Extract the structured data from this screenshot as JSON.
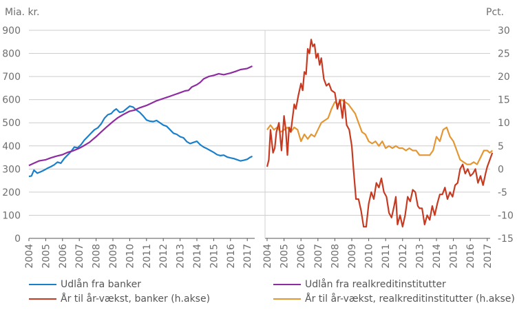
{
  "chart_data": {
    "type": "line",
    "left_panel": {
      "unit_label": "Mia. kr.",
      "ylim": [
        0,
        900
      ],
      "yticks": [
        0,
        100,
        200,
        300,
        400,
        500,
        600,
        700,
        800,
        900
      ],
      "x_ticks": [
        "2004",
        "2005",
        "2006",
        "2007",
        "2008",
        "2009",
        "2010",
        "2011",
        "2012",
        "2013",
        "2014",
        "2015",
        "2016",
        "2017"
      ],
      "xlim": [
        2004,
        2017.5
      ],
      "series": [
        {
          "name": "Udlån fra banker",
          "color": "#1a7fc9",
          "x": [
            2004.0,
            2004.15,
            2004.3,
            2004.5,
            2004.7,
            2004.9,
            2005.1,
            2005.3,
            2005.5,
            2005.7,
            2005.9,
            2006.1,
            2006.3,
            2006.5,
            2006.7,
            2006.9,
            2007.1,
            2007.3,
            2007.5,
            2007.7,
            2007.9,
            2008.1,
            2008.3,
            2008.5,
            2008.7,
            2008.9,
            2009.05,
            2009.2,
            2009.4,
            2009.6,
            2009.8,
            2010.0,
            2010.2,
            2010.4,
            2010.6,
            2010.8,
            2011.0,
            2011.2,
            2011.4,
            2011.6,
            2011.8,
            2012.0,
            2012.2,
            2012.4,
            2012.6,
            2012.8,
            2013.0,
            2013.2,
            2013.4,
            2013.6,
            2013.8,
            2014.0,
            2014.2,
            2014.4,
            2014.6,
            2014.8,
            2015.0,
            2015.2,
            2015.4,
            2015.6,
            2015.8,
            2016.0,
            2016.2,
            2016.4,
            2016.6,
            2016.8,
            2017.0,
            2017.15,
            2017.3
          ],
          "y": [
            268,
            270,
            295,
            282,
            288,
            295,
            303,
            310,
            318,
            330,
            325,
            345,
            360,
            375,
            395,
            392,
            405,
            425,
            440,
            455,
            470,
            478,
            495,
            520,
            535,
            540,
            552,
            560,
            545,
            548,
            560,
            572,
            568,
            555,
            545,
            530,
            512,
            507,
            505,
            510,
            500,
            490,
            485,
            470,
            455,
            450,
            440,
            435,
            418,
            410,
            415,
            420,
            405,
            395,
            388,
            380,
            372,
            362,
            358,
            360,
            352,
            348,
            345,
            340,
            335,
            338,
            342,
            350,
            355
          ]
        },
        {
          "name": "Udlån fra realkreditinstitutter",
          "color": "#8e2ba0",
          "x": [
            2004.0,
            2004.3,
            2004.6,
            2005.0,
            2005.3,
            2005.6,
            2006.0,
            2006.3,
            2006.6,
            2007.0,
            2007.3,
            2007.6,
            2008.0,
            2008.3,
            2008.6,
            2009.0,
            2009.3,
            2009.6,
            2010.0,
            2010.3,
            2010.6,
            2011.0,
            2011.3,
            2011.6,
            2012.0,
            2012.3,
            2012.6,
            2013.0,
            2013.3,
            2013.5,
            2013.7,
            2014.0,
            2014.2,
            2014.4,
            2014.7,
            2015.0,
            2015.3,
            2015.6,
            2016.0,
            2016.3,
            2016.6,
            2017.0,
            2017.3
          ],
          "y": [
            315,
            325,
            335,
            340,
            348,
            355,
            362,
            372,
            378,
            390,
            402,
            415,
            440,
            460,
            480,
            505,
            522,
            535,
            550,
            555,
            565,
            575,
            585,
            595,
            605,
            612,
            620,
            630,
            638,
            640,
            655,
            665,
            675,
            690,
            700,
            705,
            712,
            708,
            715,
            722,
            730,
            735,
            745
          ]
        }
      ]
    },
    "right_panel": {
      "unit_label": "Pct.",
      "ylim": [
        -15,
        30
      ],
      "yticks": [
        -15,
        -10,
        -5,
        0,
        5,
        10,
        15,
        20,
        25,
        30
      ],
      "x_ticks": [
        "2004",
        "2005",
        "2006",
        "2007",
        "2008",
        "2009",
        "2010",
        "2011",
        "2012",
        "2013",
        "2014",
        "2015",
        "2016",
        "2017"
      ],
      "xlim": [
        2004,
        2017.3
      ],
      "series": [
        {
          "name": "År til år-vækst, banker (h.akse)",
          "color": "#c63a21",
          "x": [
            2004.0,
            2004.1,
            2004.2,
            2004.35,
            2004.45,
            2004.55,
            2004.7,
            2004.85,
            2005.0,
            2005.1,
            2005.2,
            2005.3,
            2005.4,
            2005.5,
            2005.6,
            2005.7,
            2005.85,
            2006.0,
            2006.1,
            2006.2,
            2006.3,
            2006.4,
            2006.5,
            2006.6,
            2006.7,
            2006.8,
            2006.9,
            2007.0,
            2007.1,
            2007.2,
            2007.35,
            2007.5,
            2007.65,
            2007.8,
            2008.0,
            2008.15,
            2008.3,
            2008.45,
            2008.55,
            2008.7,
            2008.85,
            2009.0,
            2009.1,
            2009.25,
            2009.4,
            2009.55,
            2009.7,
            2009.85,
            2010.0,
            2010.15,
            2010.3,
            2010.45,
            2010.6,
            2010.75,
            2010.9,
            2011.05,
            2011.2,
            2011.35,
            2011.5,
            2011.6,
            2011.7,
            2011.85,
            2012.0,
            2012.15,
            2012.3,
            2012.45,
            2012.6,
            2012.75,
            2012.9,
            2013.0,
            2013.15,
            2013.3,
            2013.45,
            2013.6,
            2013.75,
            2013.9,
            2014.05,
            2014.2,
            2014.35,
            2014.5,
            2014.65,
            2014.8,
            2014.95,
            2015.1,
            2015.25,
            2015.4,
            2015.55,
            2015.7,
            2015.85,
            2016.0,
            2016.15,
            2016.3,
            2016.45,
            2016.6,
            2016.75,
            2016.9,
            2017.0,
            2017.1,
            2017.2,
            2017.3
          ],
          "y": [
            0.5,
            2.0,
            8.5,
            3.5,
            4.5,
            8.0,
            10.0,
            4.0,
            11.5,
            8.5,
            3.0,
            9.0,
            8.0,
            11.0,
            14.0,
            13.0,
            16.0,
            18.5,
            17.0,
            21.0,
            20.5,
            26.0,
            25.0,
            28.0,
            26.5,
            27.0,
            24.0,
            25.0,
            22.5,
            24.0,
            19.5,
            18.0,
            18.5,
            17.0,
            16.5,
            13.0,
            15.0,
            11.0,
            15.0,
            9.5,
            8.5,
            5.0,
            0.0,
            -6.5,
            -6.5,
            -9.0,
            -12.5,
            -12.5,
            -7.5,
            -5.0,
            -6.5,
            -3.0,
            -4.0,
            -2.0,
            -5.0,
            -6.0,
            -9.5,
            -10.5,
            -8.0,
            -6.0,
            -12.0,
            -10.0,
            -12.5,
            -10.0,
            -6.0,
            -7.0,
            -4.5,
            -5.0,
            -8.0,
            -8.5,
            -8.5,
            -12.0,
            -10.0,
            -11.0,
            -8.0,
            -10.0,
            -7.5,
            -5.5,
            -5.5,
            -4.0,
            -6.5,
            -5.0,
            -6.0,
            -3.5,
            -3.0,
            0.0,
            1.0,
            -1.0,
            0.0,
            -1.5,
            -1.0,
            0.0,
            -3.0,
            -1.5,
            -3.5,
            -1.0,
            0.5,
            1.5,
            2.5,
            3.5
          ]
        },
        {
          "name": "År til år-vækst, realkreditinstitutter (h.akse)",
          "color": "#e39632",
          "x": [
            2004.0,
            2004.2,
            2004.4,
            2004.6,
            2004.8,
            2005.0,
            2005.2,
            2005.4,
            2005.6,
            2005.8,
            2006.0,
            2006.2,
            2006.4,
            2006.6,
            2006.8,
            2007.0,
            2007.2,
            2007.4,
            2007.6,
            2007.8,
            2008.0,
            2008.2,
            2008.4,
            2008.6,
            2008.8,
            2009.0,
            2009.2,
            2009.4,
            2009.6,
            2009.8,
            2010.0,
            2010.2,
            2010.4,
            2010.6,
            2010.8,
            2011.0,
            2011.2,
            2011.4,
            2011.6,
            2011.8,
            2012.0,
            2012.2,
            2012.4,
            2012.6,
            2012.8,
            2013.0,
            2013.2,
            2013.4,
            2013.6,
            2013.8,
            2014.0,
            2014.2,
            2014.4,
            2014.6,
            2014.8,
            2015.0,
            2015.2,
            2015.4,
            2015.6,
            2015.8,
            2016.0,
            2016.2,
            2016.4,
            2016.6,
            2016.8,
            2017.0,
            2017.15,
            2017.3
          ],
          "y": [
            8.5,
            9.5,
            8.5,
            9.0,
            8.0,
            8.5,
            9.0,
            8.0,
            9.0,
            8.5,
            6.0,
            7.5,
            6.5,
            7.5,
            7.0,
            8.5,
            10.0,
            10.5,
            11.0,
            13.0,
            14.5,
            14.0,
            15.0,
            14.5,
            14.0,
            13.0,
            12.0,
            10.0,
            8.0,
            7.5,
            6.0,
            5.5,
            6.0,
            5.0,
            6.0,
            4.5,
            5.0,
            4.5,
            5.0,
            4.5,
            4.5,
            4.0,
            4.5,
            4.0,
            4.0,
            3.0,
            3.0,
            3.0,
            3.0,
            4.0,
            7.0,
            6.0,
            8.5,
            9.0,
            7.0,
            6.0,
            4.0,
            2.0,
            1.5,
            1.0,
            1.0,
            1.5,
            1.0,
            2.5,
            4.0,
            4.0,
            3.5,
            4.0
          ]
        }
      ]
    },
    "legend": [
      {
        "label": "Udlån fra banker",
        "color": "#1a7fc9"
      },
      {
        "label": "Udlån fra realkreditinstitutter",
        "color": "#8e2ba0"
      },
      {
        "label": "År til år-vækst, banker (h.akse)",
        "color": "#c63a21"
      },
      {
        "label": "År til år-vækst, realkreditinstitutter (h.akse)",
        "color": "#e39632"
      }
    ],
    "grid": true,
    "legend_position": "bottom"
  }
}
